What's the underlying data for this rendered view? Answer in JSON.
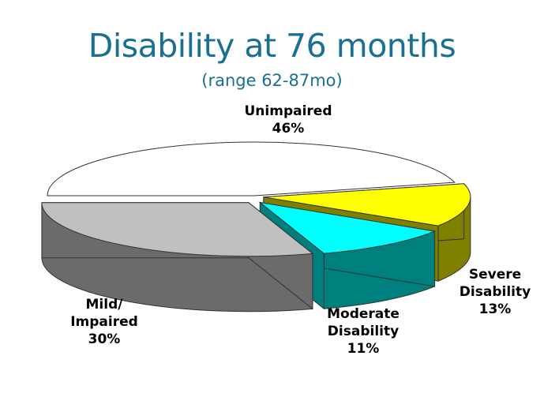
{
  "chart_data": {
    "type": "pie",
    "title": "Disability at 76 months",
    "subtitle": "(range 62-87mo)",
    "slices": [
      {
        "key": "unimpaired",
        "label_lines": [
          "Unimpaired"
        ],
        "value": 46,
        "value_label": "46%",
        "color": "#ffffff",
        "side_color": "#e6e6e6",
        "exploded": false
      },
      {
        "key": "severe",
        "label_lines": [
          "Severe",
          "Disability"
        ],
        "value": 13,
        "value_label": "13%",
        "color": "#ffff00",
        "side_color": "#808000",
        "exploded": true
      },
      {
        "key": "moderate",
        "label_lines": [
          "Moderate",
          "Disability"
        ],
        "value": 11,
        "value_label": "11%",
        "color": "#00ffff",
        "side_color": "#007f7f",
        "exploded": true
      },
      {
        "key": "mild",
        "label_lines": [
          "Mild/",
          "Impaired"
        ],
        "value": 30,
        "value_label": "30%",
        "color": "#c0c0c0",
        "side_color": "#6b6b6b",
        "exploded": true
      }
    ]
  }
}
